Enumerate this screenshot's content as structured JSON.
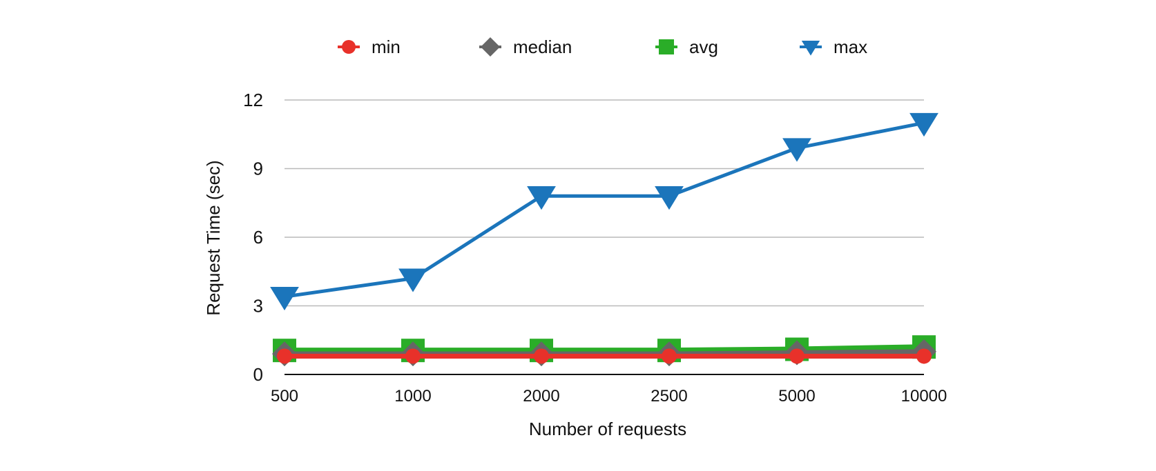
{
  "chart_data": {
    "type": "line",
    "title": "",
    "xlabel": "Number of  requests",
    "ylabel": "Request Time (sec)",
    "categories": [
      "500",
      "1000",
      "2000",
      "2500",
      "5000",
      "10000"
    ],
    "ylim": [
      0,
      12
    ],
    "yticks": [
      0,
      3,
      6,
      9,
      12
    ],
    "grid": true,
    "legend_position": "top",
    "series": [
      {
        "name": "min",
        "values": [
          0.8,
          0.8,
          0.8,
          0.8,
          0.8,
          0.8
        ],
        "color": "#e8312a",
        "marker": "circle"
      },
      {
        "name": "median",
        "values": [
          0.9,
          0.9,
          0.9,
          0.9,
          0.95,
          1.0
        ],
        "color": "#666666",
        "marker": "diamond"
      },
      {
        "name": "avg",
        "values": [
          1.05,
          1.05,
          1.05,
          1.05,
          1.1,
          1.2
        ],
        "color": "#2aad28",
        "marker": "square"
      },
      {
        "name": "max",
        "values": [
          3.4,
          4.2,
          7.8,
          7.8,
          9.9,
          11.0
        ],
        "color": "#1b75bb",
        "marker": "triangle-down"
      }
    ]
  }
}
